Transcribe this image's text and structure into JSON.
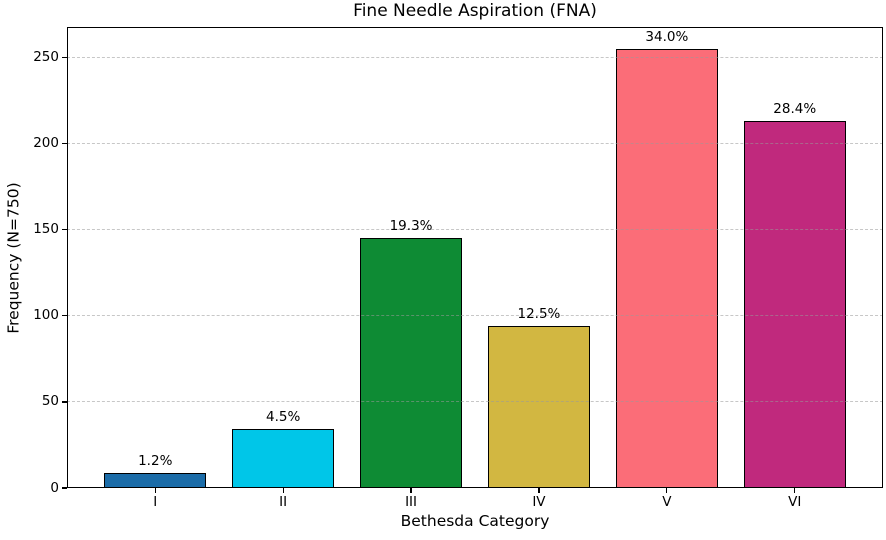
{
  "chart_data": {
    "type": "bar",
    "title": "Fine Needle Aspiration (FNA)",
    "xlabel": "Bethesda Category",
    "ylabel": "Frequency (N=750)",
    "categories": [
      "I",
      "II",
      "III",
      "IV",
      "V",
      "VI"
    ],
    "values": [
      9,
      34,
      145,
      94,
      255,
      213
    ],
    "bar_labels": [
      "1.2%",
      "4.5%",
      "19.3%",
      "12.5%",
      "34.0%",
      "28.4%"
    ],
    "bar_colors": [
      "#1b6ca8",
      "#00c6e8",
      "#0e8b34",
      "#d2b741",
      "#fb6d78",
      "#c0297d"
    ],
    "bar_edge_color": "#000000",
    "yticks": [
      0,
      50,
      100,
      150,
      200,
      250
    ],
    "ylim": [
      0,
      267.75
    ],
    "grid": "horizontal dashed, drawn over bars",
    "legend": "none"
  }
}
